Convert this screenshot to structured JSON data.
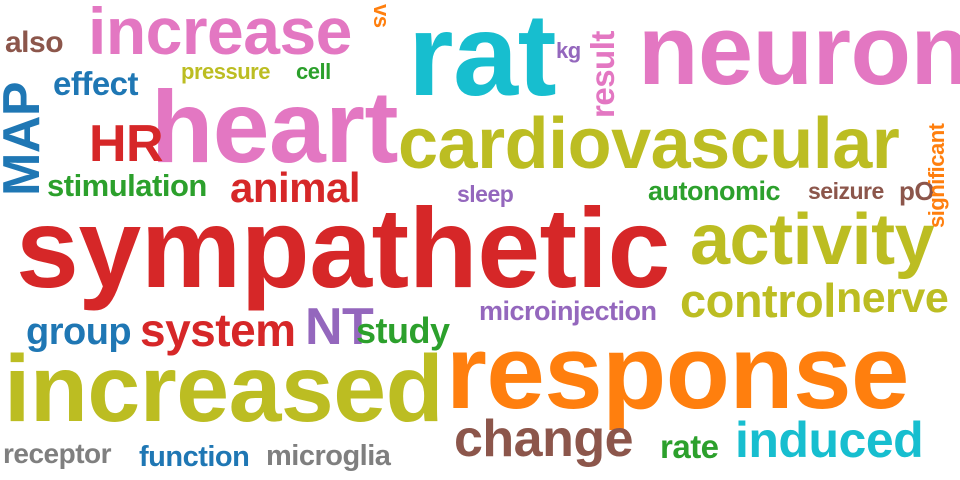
{
  "word_cloud": {
    "colors": {
      "red": "#d62728",
      "pink": "#e377c2",
      "teal": "#17becf",
      "olive": "#bcbd22",
      "orange": "#ff7f0e",
      "blue": "#1f77b4",
      "green": "#2ca02c",
      "brown": "#8c564b",
      "purple": "#9467bd",
      "gray": "#7f7f7f"
    },
    "words": [
      {
        "text": "sympathetic",
        "color": "red"
      },
      {
        "text": "response",
        "color": "orange"
      },
      {
        "text": "increased",
        "color": "olive"
      },
      {
        "text": "heart",
        "color": "pink"
      },
      {
        "text": "rat",
        "color": "teal"
      },
      {
        "text": "neuron",
        "color": "pink"
      },
      {
        "text": "cardiovascular",
        "color": "olive"
      },
      {
        "text": "increase",
        "color": "pink"
      },
      {
        "text": "activity",
        "color": "olive"
      },
      {
        "text": "MAP",
        "color": "blue"
      },
      {
        "text": "change",
        "color": "brown"
      },
      {
        "text": "induced",
        "color": "teal"
      },
      {
        "text": "control",
        "color": "olive"
      },
      {
        "text": "nerve",
        "color": "olive"
      },
      {
        "text": "system",
        "color": "red"
      },
      {
        "text": "animal",
        "color": "red"
      },
      {
        "text": "HR",
        "color": "red"
      },
      {
        "text": "NT",
        "color": "purple"
      },
      {
        "text": "group",
        "color": "blue"
      },
      {
        "text": "study",
        "color": "green"
      },
      {
        "text": "stimulation",
        "color": "green"
      },
      {
        "text": "result",
        "color": "pink"
      },
      {
        "text": "effect",
        "color": "blue"
      },
      {
        "text": "also",
        "color": "brown"
      },
      {
        "text": "rate",
        "color": "green"
      },
      {
        "text": "receptor",
        "color": "gray"
      },
      {
        "text": "function",
        "color": "blue"
      },
      {
        "text": "microglia",
        "color": "gray"
      },
      {
        "text": "autonomic",
        "color": "green"
      },
      {
        "text": "microinjection",
        "color": "purple"
      },
      {
        "text": "pressure",
        "color": "olive"
      },
      {
        "text": "cell",
        "color": "green"
      },
      {
        "text": "seizure",
        "color": "brown"
      },
      {
        "text": "pO",
        "color": "brown"
      },
      {
        "text": "significant",
        "color": "orange"
      },
      {
        "text": "sleep",
        "color": "purple"
      },
      {
        "text": "kg",
        "color": "purple"
      },
      {
        "text": "vs",
        "color": "orange"
      }
    ]
  }
}
